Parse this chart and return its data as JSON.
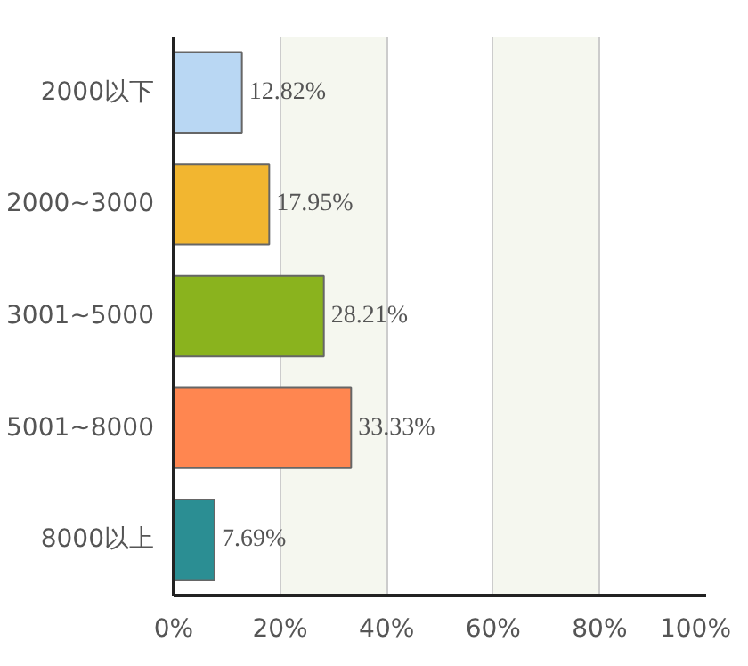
{
  "chart_data": {
    "type": "bar",
    "orientation": "horizontal",
    "categories": [
      "2000以下",
      "2000~3000",
      "3001~5000",
      "5001~8000",
      "8000以上"
    ],
    "values": [
      12.82,
      17.95,
      28.21,
      33.33,
      7.69
    ],
    "colors": [
      "#b9d7f3",
      "#f2b630",
      "#8ab31e",
      "#ff8650",
      "#2b8e93"
    ],
    "value_labels": [
      "12.82%",
      "17.95%",
      "28.21%",
      "33.33%",
      "7.69%"
    ],
    "xlim": [
      0,
      100
    ],
    "xticks": [
      {
        "value": 0,
        "label": "0%"
      },
      {
        "value": 20,
        "label": "20%"
      },
      {
        "value": 40,
        "label": "40%"
      },
      {
        "value": 60,
        "label": "60%"
      },
      {
        "value": 80,
        "label": "80%"
      },
      {
        "value": 100,
        "label": "100%"
      }
    ],
    "grid": "x"
  }
}
